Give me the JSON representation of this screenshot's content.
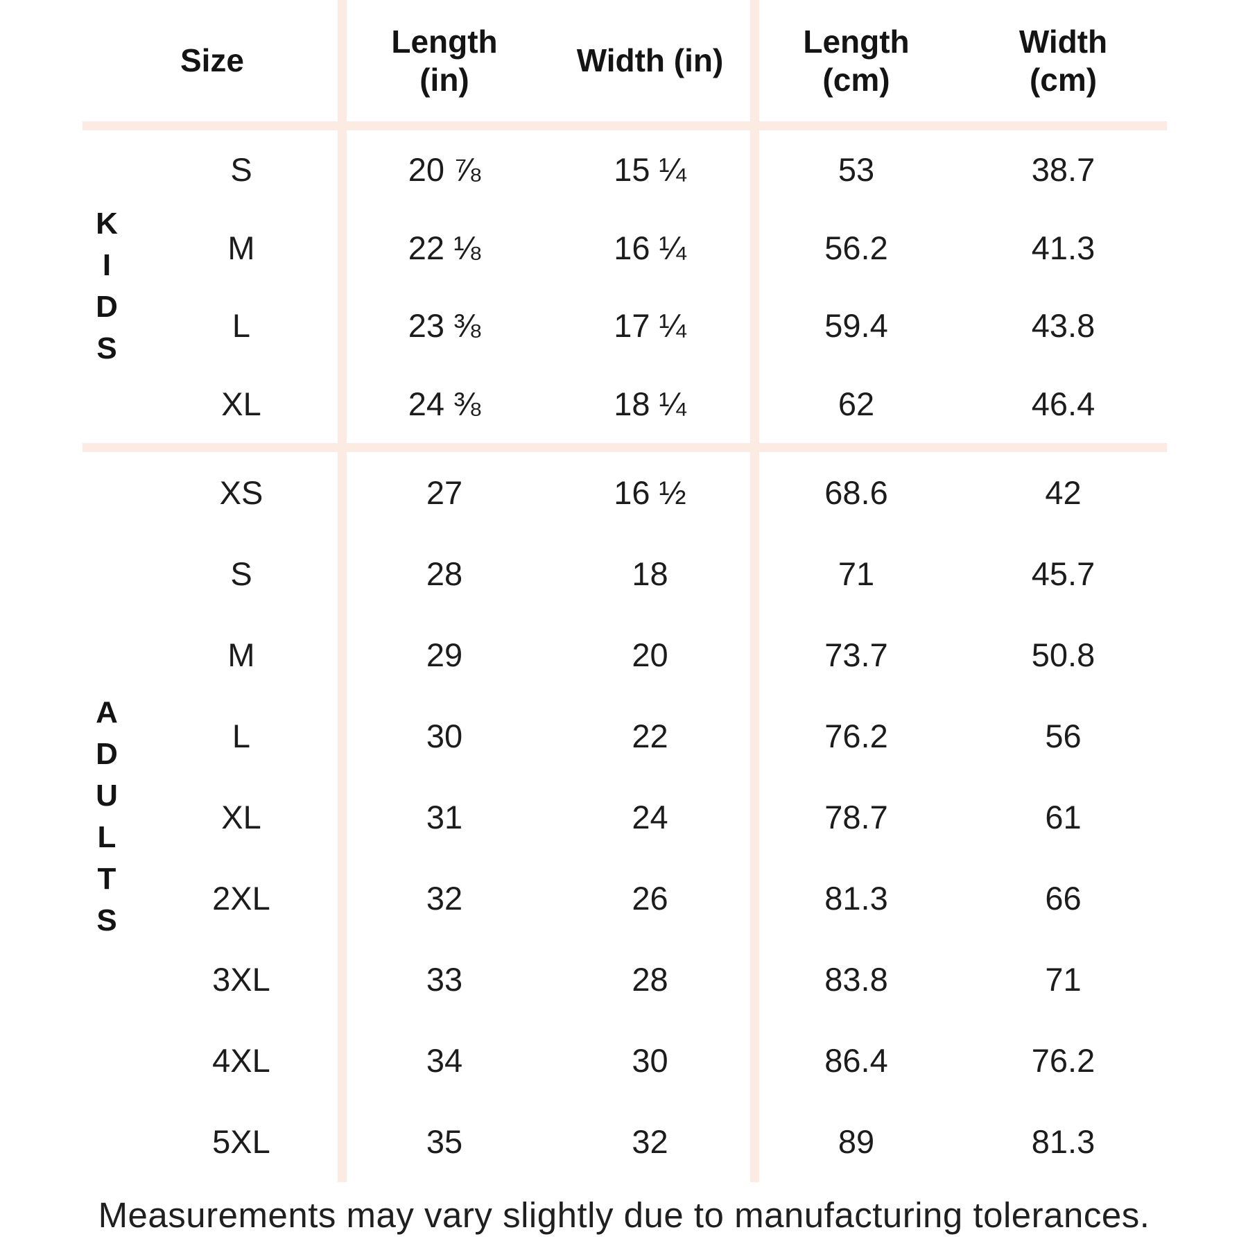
{
  "page": {
    "background": "#ffffff",
    "divider_color": "#fbebe2",
    "text_color": "#1c1c1c"
  },
  "header": {
    "size": "Size",
    "length_in": "Length\n(in)",
    "width_in": "Width (in)",
    "length_cm": "Length\n(cm)",
    "width_cm": "Width\n(cm)"
  },
  "sections": [
    {
      "label": "KIDS",
      "label_stacked": "K\nI\nD\nS",
      "rows": [
        {
          "size": "S",
          "length_in": "20 ⅞",
          "width_in": "15 ¼",
          "length_cm": "53",
          "width_cm": "38.7"
        },
        {
          "size": "M",
          "length_in": "22 ⅛",
          "width_in": "16 ¼",
          "length_cm": "56.2",
          "width_cm": "41.3"
        },
        {
          "size": "L",
          "length_in": "23 ⅜",
          "width_in": "17 ¼",
          "length_cm": "59.4",
          "width_cm": "43.8"
        },
        {
          "size": "XL",
          "length_in": "24 ⅜",
          "width_in": "18 ¼",
          "length_cm": "62",
          "width_cm": "46.4"
        }
      ]
    },
    {
      "label": "ADULTS",
      "label_stacked": "A\nD\nU\nL\nT\nS",
      "rows": [
        {
          "size": "XS",
          "length_in": "27",
          "width_in": "16 ½",
          "length_cm": "68.6",
          "width_cm": "42"
        },
        {
          "size": "S",
          "length_in": "28",
          "width_in": "18",
          "length_cm": "71",
          "width_cm": "45.7"
        },
        {
          "size": "M",
          "length_in": "29",
          "width_in": "20",
          "length_cm": "73.7",
          "width_cm": "50.8"
        },
        {
          "size": "L",
          "length_in": "30",
          "width_in": "22",
          "length_cm": "76.2",
          "width_cm": "56"
        },
        {
          "size": "XL",
          "length_in": "31",
          "width_in": "24",
          "length_cm": "78.7",
          "width_cm": "61"
        },
        {
          "size": "2XL",
          "length_in": "32",
          "width_in": "26",
          "length_cm": "81.3",
          "width_cm": "66"
        },
        {
          "size": "3XL",
          "length_in": "33",
          "width_in": "28",
          "length_cm": "83.8",
          "width_cm": "71"
        },
        {
          "size": "4XL",
          "length_in": "34",
          "width_in": "30",
          "length_cm": "86.4",
          "width_cm": "76.2"
        },
        {
          "size": "5XL",
          "length_in": "35",
          "width_in": "32",
          "length_cm": "89",
          "width_cm": "81.3"
        }
      ]
    }
  ],
  "footer": {
    "note": "Measurements may vary slightly due to manufacturing tolerances."
  },
  "chart_data": {
    "type": "table",
    "title": "Apparel size chart",
    "columns": [
      "Size",
      "Length (in)",
      "Width (in)",
      "Length (cm)",
      "Width (cm)"
    ],
    "groups": [
      {
        "name": "KIDS",
        "rows": [
          [
            "S",
            "20 ⅞",
            "15 ¼",
            53,
            38.7
          ],
          [
            "M",
            "22 ⅛",
            "16 ¼",
            56.2,
            41.3
          ],
          [
            "L",
            "23 ⅜",
            "17 ¼",
            59.4,
            43.8
          ],
          [
            "XL",
            "24 ⅜",
            "18 ¼",
            62,
            46.4
          ]
        ]
      },
      {
        "name": "ADULTS",
        "rows": [
          [
            "XS",
            27,
            "16 ½",
            68.6,
            42
          ],
          [
            "S",
            28,
            18,
            71,
            45.7
          ],
          [
            "M",
            29,
            20,
            73.7,
            50.8
          ],
          [
            "L",
            30,
            22,
            76.2,
            56
          ],
          [
            "XL",
            31,
            24,
            78.7,
            61
          ],
          [
            "2XL",
            32,
            26,
            81.3,
            66
          ],
          [
            "3XL",
            33,
            28,
            83.8,
            71
          ],
          [
            "4XL",
            34,
            30,
            86.4,
            76.2
          ],
          [
            "5XL",
            35,
            32,
            89,
            81.3
          ]
        ]
      }
    ],
    "footnote": "Measurements may vary slightly due to manufacturing tolerances."
  }
}
